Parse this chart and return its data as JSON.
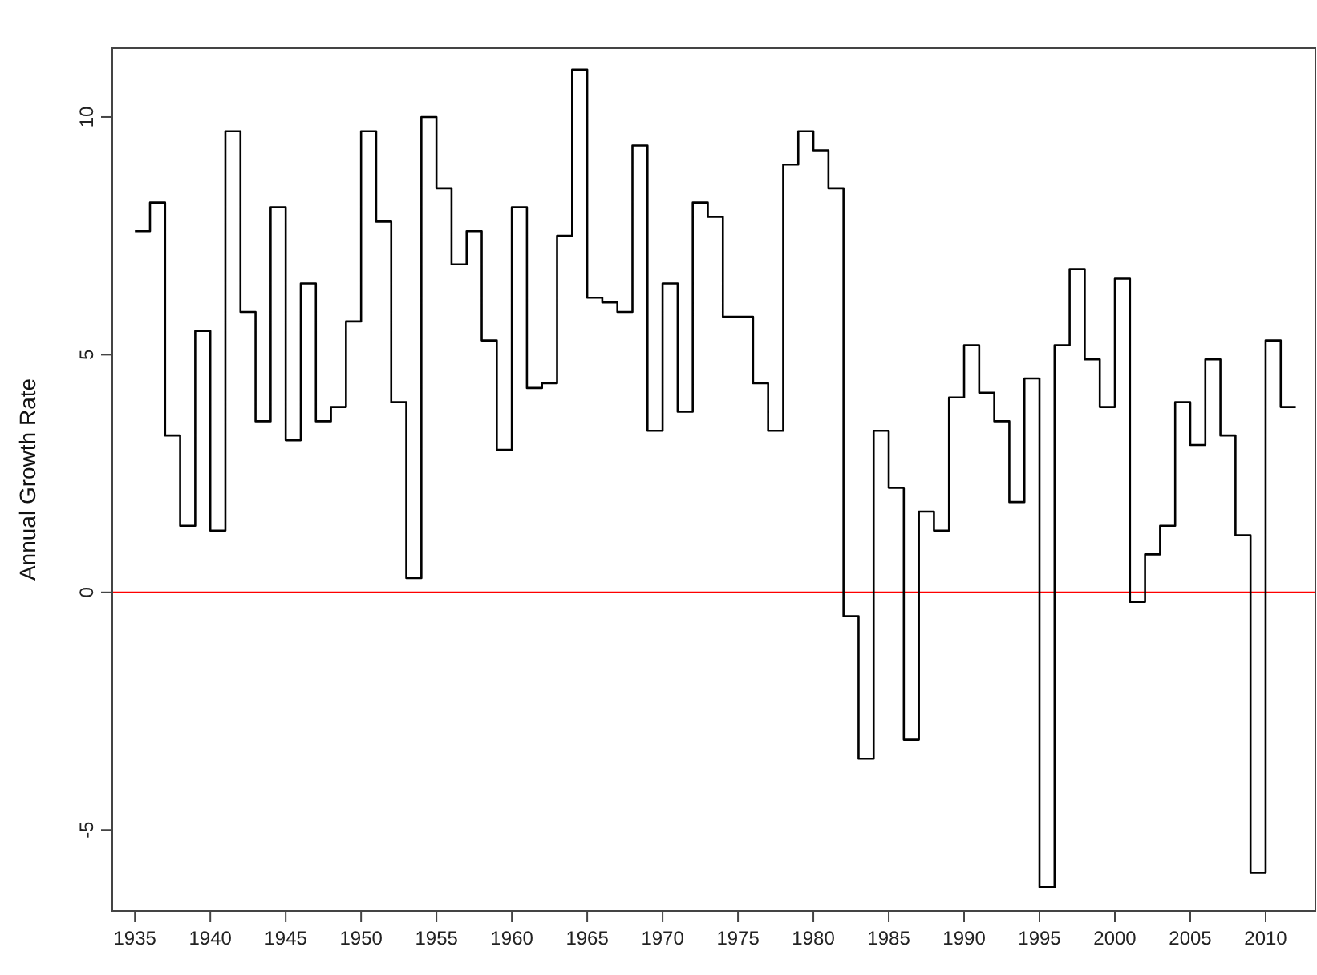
{
  "chart_data": {
    "type": "step",
    "ylabel": "Annual Growth Rate",
    "x": [
      1935,
      1936,
      1937,
      1938,
      1939,
      1940,
      1941,
      1942,
      1943,
      1944,
      1945,
      1946,
      1947,
      1948,
      1949,
      1950,
      1951,
      1952,
      1953,
      1954,
      1955,
      1956,
      1957,
      1958,
      1959,
      1960,
      1961,
      1962,
      1963,
      1964,
      1965,
      1966,
      1967,
      1968,
      1969,
      1970,
      1971,
      1972,
      1973,
      1974,
      1975,
      1976,
      1977,
      1978,
      1979,
      1980,
      1981,
      1982,
      1983,
      1984,
      1985,
      1986,
      1987,
      1988,
      1989,
      1990,
      1991,
      1992,
      1993,
      1994,
      1995,
      1996,
      1997,
      1998,
      1999,
      2000,
      2001,
      2002,
      2003,
      2004,
      2005,
      2006,
      2007,
      2008,
      2009,
      2010,
      2011,
      2012
    ],
    "series": [
      {
        "color": "#000000",
        "values": [
          7.6,
          8.2,
          3.3,
          1.4,
          5.5,
          1.3,
          9.7,
          5.9,
          3.6,
          8.1,
          3.2,
          6.5,
          3.6,
          3.9,
          5.7,
          9.7,
          7.8,
          4.0,
          0.3,
          10.0,
          8.5,
          6.9,
          7.6,
          5.3,
          3.0,
          8.1,
          4.3,
          4.4,
          7.5,
          11.0,
          6.2,
          6.1,
          5.9,
          9.4,
          3.4,
          6.5,
          3.8,
          8.2,
          7.9,
          5.8,
          5.8,
          4.4,
          3.4,
          9.0,
          9.7,
          9.3,
          8.5,
          -0.5,
          -3.5,
          3.4,
          2.2,
          -3.1,
          1.7,
          1.3,
          4.1,
          5.2,
          4.2,
          3.6,
          1.9,
          4.5,
          -6.2,
          5.2,
          6.8,
          4.9,
          3.9,
          6.6,
          -0.2,
          0.8,
          1.4,
          4.0,
          3.1,
          4.9,
          3.3,
          1.2,
          -5.9,
          5.3,
          3.9,
          3.9
        ]
      }
    ],
    "xlim": [
      1933.5,
      2013.3
    ],
    "ylim": [
      -6.7,
      11.45
    ],
    "xticks": [
      1935,
      1940,
      1945,
      1950,
      1955,
      1960,
      1965,
      1970,
      1975,
      1980,
      1985,
      1990,
      1995,
      2000,
      2005,
      2010
    ],
    "yticks": [
      -5,
      0,
      5,
      10
    ],
    "ref_lines": [
      {
        "axis": "y",
        "value": 0,
        "color": "#ff0000"
      }
    ],
    "grid": false
  }
}
